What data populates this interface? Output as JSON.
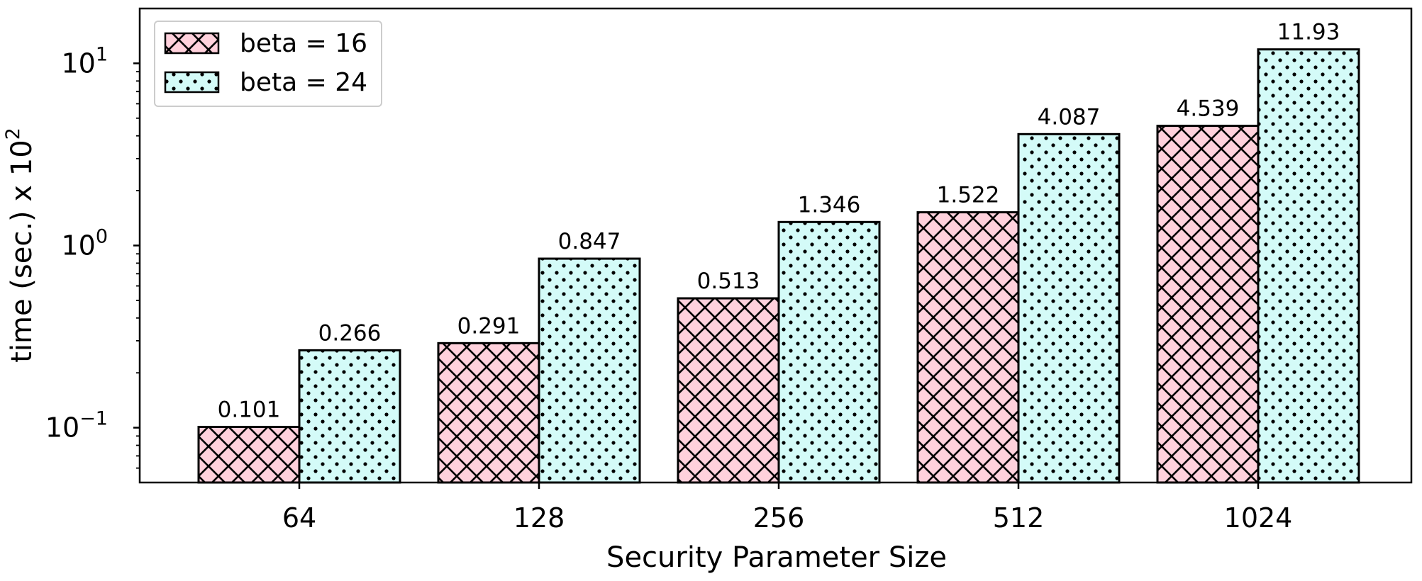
{
  "chart_data": {
    "type": "bar",
    "title": "",
    "xlabel": "Security Parameter Size",
    "ylabel": "time (sec.) x 10",
    "ylabel_superscript": "2",
    "yscale": "log",
    "ylim": [
      0.05,
      20
    ],
    "yticks": [
      {
        "value": 0.1,
        "base": "10",
        "exponent": "−1"
      },
      {
        "value": 1,
        "base": "10",
        "exponent": "0"
      },
      {
        "value": 10,
        "base": "10",
        "exponent": "1"
      }
    ],
    "categories": [
      "64",
      "128",
      "256",
      "512",
      "1024"
    ],
    "series": [
      {
        "name": "beta = 16",
        "values": [
          0.101,
          0.291,
          0.513,
          1.522,
          4.539
        ],
        "labels": [
          "0.101",
          "0.291",
          "0.513",
          "1.522",
          "4.539"
        ],
        "color": "#ffd1dc",
        "hatch": "crosshatch"
      },
      {
        "name": "beta = 24",
        "values": [
          0.266,
          0.847,
          1.346,
          4.087,
          11.93
        ],
        "labels": [
          "0.266",
          "0.847",
          "1.346",
          "4.087",
          "11.93"
        ],
        "color": "#d4fbf8",
        "hatch": "dots"
      }
    ],
    "legend": "top-left",
    "grid": false
  }
}
